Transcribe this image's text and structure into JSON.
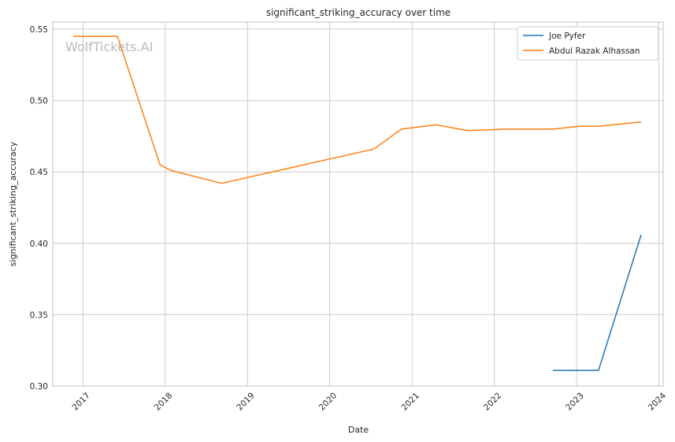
{
  "chart_data": {
    "type": "line",
    "title": "significant_striking_accuracy over time",
    "xlabel": "Date",
    "ylabel": "significant_striking_accuracy",
    "watermark": "WolfTickets.AI",
    "x_ticks": [
      "2017",
      "2018",
      "2019",
      "2020",
      "2021",
      "2022",
      "2023",
      "2024"
    ],
    "y_ticks": [
      "0.30",
      "0.35",
      "0.40",
      "0.45",
      "0.50",
      "0.55"
    ],
    "xlim": [
      "2016-08-20",
      "2024-01-20"
    ],
    "ylim": [
      0.3,
      0.555
    ],
    "grid": true,
    "legend_position": "top-right",
    "series": [
      {
        "name": "Joe Pyfer",
        "color": "#1f77b4",
        "points": [
          {
            "x": "2022-09-17",
            "y": 0.311
          },
          {
            "x": "2023-04-08",
            "y": 0.311
          },
          {
            "x": "2023-10-14",
            "y": 0.406
          }
        ]
      },
      {
        "name": "Abdul Razak Alhassan",
        "color": "#ff7f0e",
        "points": [
          {
            "x": "2016-11-19",
            "y": 0.545
          },
          {
            "x": "2017-06-03",
            "y": 0.545
          },
          {
            "x": "2017-12-09",
            "y": 0.455
          },
          {
            "x": "2018-01-27",
            "y": 0.451
          },
          {
            "x": "2018-09-08",
            "y": 0.442
          },
          {
            "x": "2020-07-15",
            "y": 0.466
          },
          {
            "x": "2020-11-14",
            "y": 0.48
          },
          {
            "x": "2021-04-17",
            "y": 0.483
          },
          {
            "x": "2021-09-04",
            "y": 0.479
          },
          {
            "x": "2022-02-19",
            "y": 0.48
          },
          {
            "x": "2022-09-17",
            "y": 0.48
          },
          {
            "x": "2023-01-14",
            "y": 0.482
          },
          {
            "x": "2023-04-08",
            "y": 0.482
          },
          {
            "x": "2023-10-14",
            "y": 0.485
          }
        ]
      }
    ]
  }
}
